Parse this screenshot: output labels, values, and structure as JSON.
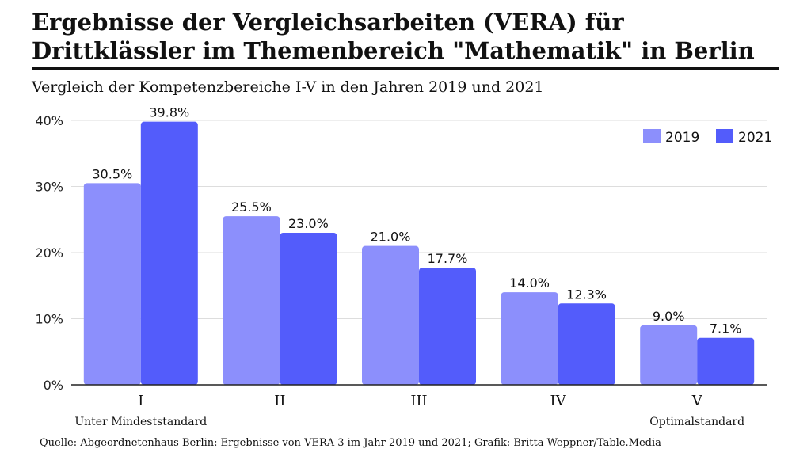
{
  "title": "Ergebnisse der Vergleichsarbeiten (VERA) für Drittklässler im Themenbereich \"Mathematik\" in Berlin",
  "subtitle": "Vergleich der Kompetenzbereiche I-V in den Jahren 2019 und 2021",
  "source": "Quelle: Abgeordnetenhaus Berlin: Ergebnisse von VERA 3 im Jahr 2019 und 2021; Grafik: Britta Weppner/Table.Media",
  "colors": {
    "series_2019": "#8c8ffc",
    "series_2021": "#535cfb",
    "grid": "#dddddd",
    "axis": "#222222"
  },
  "chart_data": {
    "type": "bar",
    "title": "Ergebnisse der Vergleichsarbeiten (VERA) für Drittklässler im Themenbereich \"Mathematik\" in Berlin",
    "subtitle": "Vergleich der Kompetenzbereiche I-V in den Jahren 2019 und 2021",
    "categories": [
      "I",
      "II",
      "III",
      "IV",
      "V"
    ],
    "category_sublabels": [
      "Unter Mindeststandard",
      "",
      "",
      "",
      "Optimalstandard"
    ],
    "series": [
      {
        "name": "2019",
        "values": [
          30.5,
          25.5,
          21.0,
          14.0,
          9.0
        ],
        "labels": [
          "30.5%",
          "25.5%",
          "21.0%",
          "14.0%",
          "9.0%"
        ]
      },
      {
        "name": "2021",
        "values": [
          39.8,
          23.0,
          17.7,
          12.3,
          7.1
        ],
        "labels": [
          "39.8%",
          "23.0%",
          "17.7%",
          "12.3%",
          "7.1%"
        ]
      }
    ],
    "yticks": [
      0,
      10,
      20,
      30,
      40
    ],
    "ytick_labels": [
      "0%",
      "10%",
      "20%",
      "30%",
      "40%"
    ],
    "ylim": [
      0,
      40
    ],
    "xlabel": "",
    "ylabel": "",
    "grid": true,
    "legend": "top-right"
  }
}
